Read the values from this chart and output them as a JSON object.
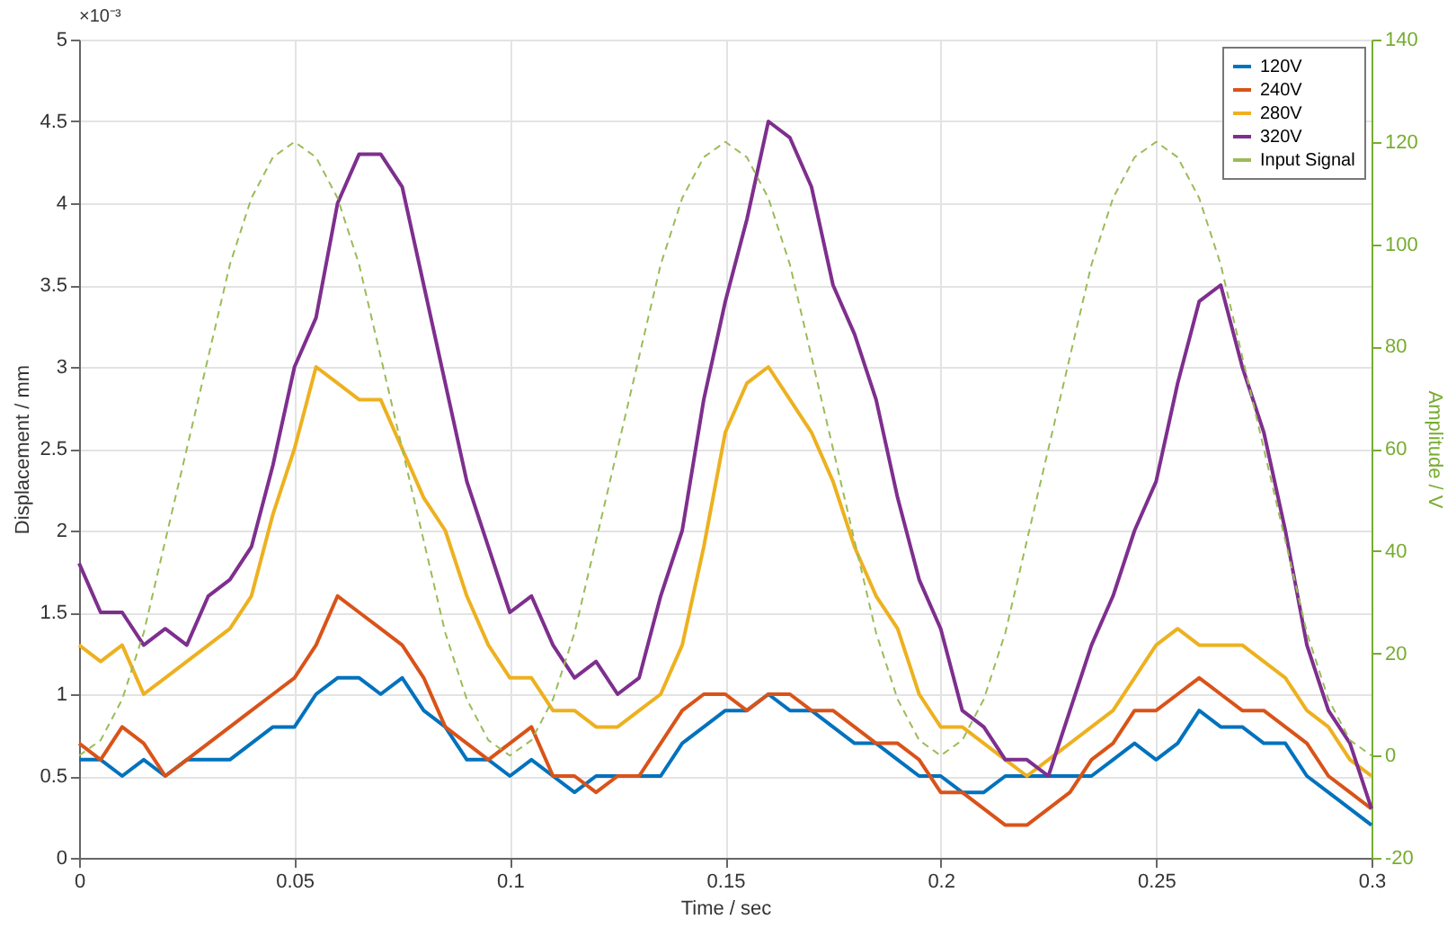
{
  "chart_data": {
    "type": "line",
    "xlabel": "Time / sec",
    "ylabel": "Displacement / mm",
    "y2label": "Amplitude / V",
    "annotations": [
      "×10⁻³"
    ],
    "x": [
      0,
      0.005,
      0.01,
      0.015,
      0.02,
      0.025,
      0.03,
      0.035,
      0.04,
      0.045,
      0.05,
      0.055,
      0.06,
      0.065,
      0.07,
      0.075,
      0.08,
      0.085,
      0.09,
      0.095,
      0.1,
      0.105,
      0.11,
      0.115,
      0.12,
      0.125,
      0.13,
      0.135,
      0.14,
      0.145,
      0.15,
      0.155,
      0.16,
      0.165,
      0.17,
      0.175,
      0.18,
      0.185,
      0.19,
      0.195,
      0.2,
      0.205,
      0.21,
      0.215,
      0.22,
      0.225,
      0.23,
      0.235,
      0.24,
      0.245,
      0.25,
      0.255,
      0.26,
      0.265,
      0.27,
      0.275,
      0.28,
      0.285,
      0.29,
      0.295,
      0.3
    ],
    "xlim": [
      0,
      0.3
    ],
    "xticks": [
      0,
      0.05,
      0.1,
      0.15,
      0.2,
      0.25,
      0.3
    ],
    "ylim": [
      0,
      5
    ],
    "yticks": [
      0,
      0.5,
      1,
      1.5,
      2,
      2.5,
      3,
      3.5,
      4,
      4.5,
      5
    ],
    "y2lim": [
      -20,
      140
    ],
    "y2ticks": [
      -20,
      0,
      20,
      40,
      60,
      80,
      100,
      120,
      140
    ],
    "grid": true,
    "legend": "top right",
    "marker": "none",
    "series": [
      {
        "name": "120V",
        "color": "#0072bd",
        "line_style": "solid",
        "values": [
          0.6,
          0.6,
          0.5,
          0.6,
          0.5,
          0.6,
          0.6,
          0.6,
          0.7,
          0.8,
          0.8,
          1.0,
          1.1,
          1.1,
          1.0,
          1.1,
          0.9,
          0.8,
          0.6,
          0.6,
          0.5,
          0.6,
          0.5,
          0.4,
          0.5,
          0.5,
          0.5,
          0.5,
          0.7,
          0.8,
          0.9,
          0.9,
          1.0,
          0.9,
          0.9,
          0.8,
          0.7,
          0.7,
          0.6,
          0.5,
          0.5,
          0.4,
          0.4,
          0.5,
          0.5,
          0.5,
          0.5,
          0.5,
          0.6,
          0.7,
          0.6,
          0.7,
          0.9,
          0.8,
          0.8,
          0.7,
          0.7,
          0.5,
          0.4,
          0.3,
          0.2
        ]
      },
      {
        "name": "240V",
        "color": "#d95319",
        "line_style": "solid",
        "values": [
          0.7,
          0.6,
          0.8,
          0.7,
          0.5,
          0.6,
          0.7,
          0.8,
          0.9,
          1.0,
          1.1,
          1.3,
          1.6,
          1.5,
          1.4,
          1.3,
          1.1,
          0.8,
          0.7,
          0.6,
          0.7,
          0.8,
          0.5,
          0.5,
          0.4,
          0.5,
          0.5,
          0.7,
          0.9,
          1.0,
          1.0,
          0.9,
          1.0,
          1.0,
          0.9,
          0.9,
          0.8,
          0.7,
          0.7,
          0.6,
          0.4,
          0.4,
          0.3,
          0.2,
          0.2,
          0.3,
          0.4,
          0.6,
          0.7,
          0.9,
          0.9,
          1.0,
          1.1,
          1.0,
          0.9,
          0.9,
          0.8,
          0.7,
          0.5,
          0.4,
          0.3
        ]
      },
      {
        "name": "280V",
        "color": "#edb120",
        "line_style": "solid",
        "values": [
          1.3,
          1.2,
          1.3,
          1.0,
          1.1,
          1.2,
          1.3,
          1.4,
          1.6,
          2.1,
          2.5,
          3.0,
          2.9,
          2.8,
          2.8,
          2.5,
          2.2,
          2.0,
          1.6,
          1.3,
          1.1,
          1.1,
          0.9,
          0.9,
          0.8,
          0.8,
          0.9,
          1.0,
          1.3,
          1.9,
          2.6,
          2.9,
          3.0,
          2.8,
          2.6,
          2.3,
          1.9,
          1.6,
          1.4,
          1.0,
          0.8,
          0.8,
          0.7,
          0.6,
          0.5,
          0.6,
          0.7,
          0.8,
          0.9,
          1.1,
          1.3,
          1.4,
          1.3,
          1.3,
          1.3,
          1.2,
          1.1,
          0.9,
          0.8,
          0.6,
          0.5
        ]
      },
      {
        "name": "320V",
        "color": "#7e2f8e",
        "line_style": "solid",
        "values": [
          1.8,
          1.5,
          1.5,
          1.3,
          1.4,
          1.3,
          1.6,
          1.7,
          1.9,
          2.4,
          3.0,
          3.3,
          4.0,
          4.3,
          4.3,
          4.1,
          3.5,
          2.9,
          2.3,
          1.9,
          1.5,
          1.6,
          1.3,
          1.1,
          1.2,
          1.0,
          1.1,
          1.6,
          2.0,
          2.8,
          3.4,
          3.9,
          4.5,
          4.4,
          4.1,
          3.5,
          3.2,
          2.8,
          2.2,
          1.7,
          1.4,
          0.9,
          0.8,
          0.6,
          0.6,
          0.5,
          0.9,
          1.3,
          1.6,
          2.0,
          2.3,
          2.9,
          3.4,
          3.5,
          3.0,
          2.6,
          2.0,
          1.3,
          0.9,
          0.7,
          0.3
        ]
      },
      {
        "name": "Input Signal",
        "color": "#9bbb59",
        "line_style": "dashed",
        "axis": "y2",
        "values": [
          0,
          3,
          11,
          24,
          42,
          60,
          78,
          96,
          109,
          117,
          120,
          117,
          109,
          96,
          78,
          60,
          42,
          24,
          11,
          3,
          0,
          3,
          11,
          24,
          42,
          60,
          78,
          96,
          109,
          117,
          120,
          117,
          109,
          96,
          78,
          60,
          42,
          24,
          11,
          3,
          0,
          3,
          11,
          24,
          42,
          60,
          78,
          96,
          109,
          117,
          120,
          117,
          109,
          96,
          78,
          60,
          42,
          24,
          11,
          3,
          0
        ]
      }
    ]
  }
}
